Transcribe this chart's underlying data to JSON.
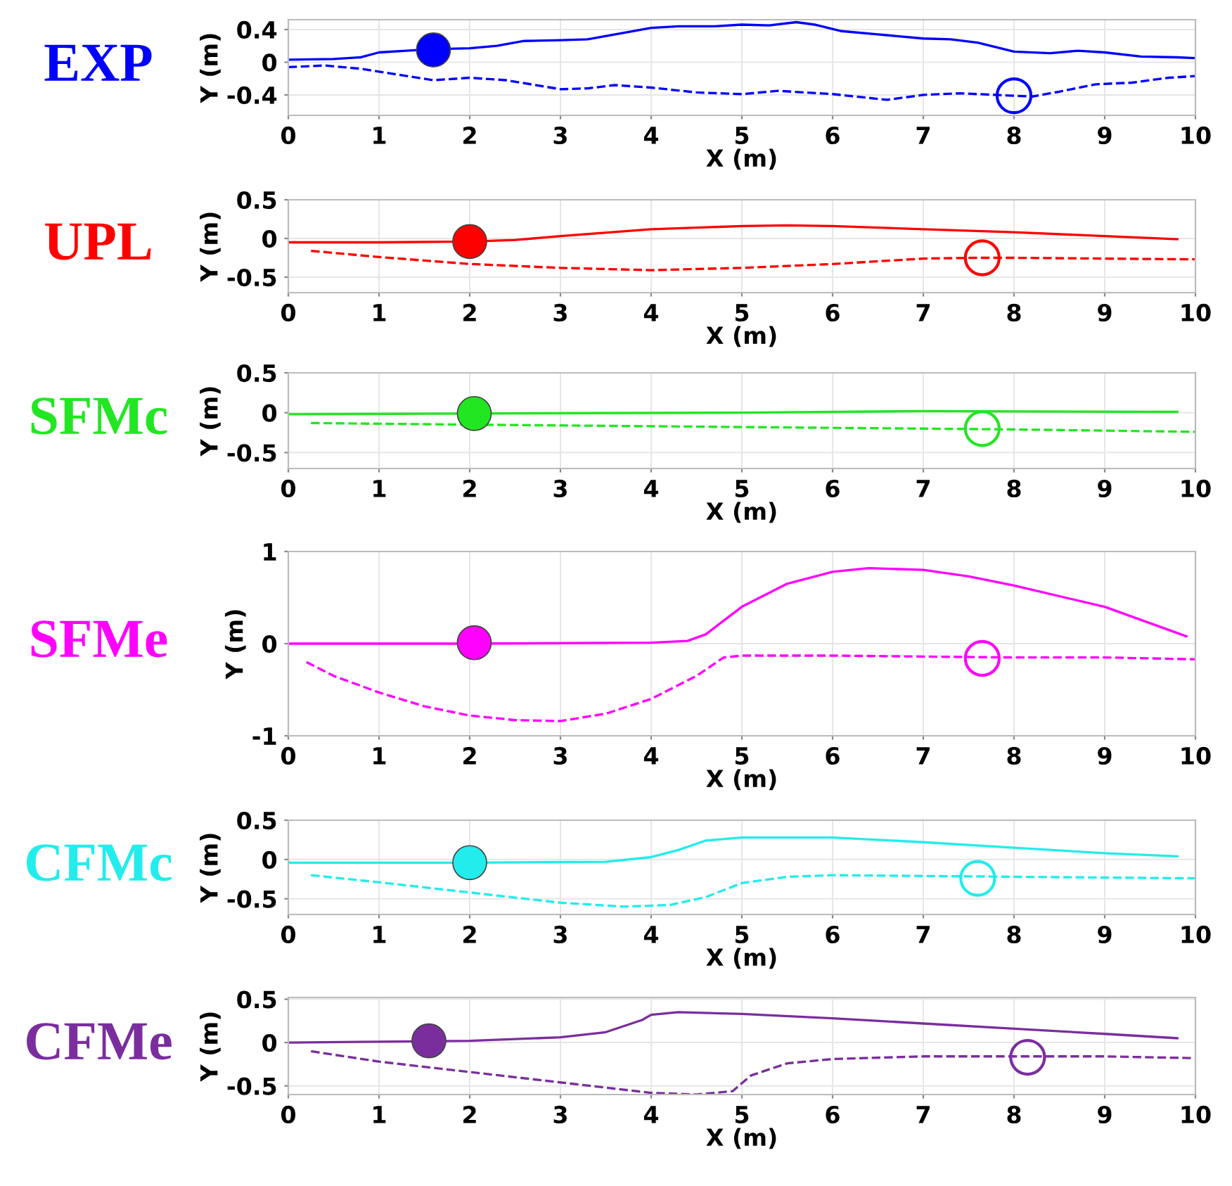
{
  "chart_data": [
    {
      "type": "line",
      "title": "EXP",
      "xlabel": "X (m)",
      "ylabel": "Y (m)",
      "xlim": [
        0,
        10
      ],
      "xticks": [
        0,
        1,
        2,
        3,
        4,
        5,
        6,
        7,
        8,
        9,
        10
      ],
      "ylim": [
        -0.65,
        0.52
      ],
      "yticks": [
        {
          "value": -0.4,
          "label": "-0.4"
        },
        0,
        0.4
      ],
      "grid": true,
      "series": [
        {
          "color": "#0000ff",
          "line_style": "solid",
          "x": [
            0,
            0.5,
            0.8,
            1,
            1.3,
            1.6,
            2,
            2.3,
            2.6,
            3,
            3.3,
            3.7,
            4,
            4.3,
            4.7,
            5,
            5.3,
            5.6,
            5.8,
            6.1,
            6.5,
            7,
            7.3,
            7.6,
            8,
            8.4,
            8.7,
            9,
            9.4,
            9.8,
            10
          ],
          "values": [
            0.03,
            0.04,
            0.06,
            0.12,
            0.14,
            0.16,
            0.17,
            0.2,
            0.26,
            0.27,
            0.28,
            0.36,
            0.42,
            0.44,
            0.44,
            0.46,
            0.45,
            0.49,
            0.46,
            0.38,
            0.34,
            0.29,
            0.28,
            0.24,
            0.13,
            0.11,
            0.14,
            0.12,
            0.07,
            0.06,
            0.05
          ]
        },
        {
          "color": "#0000ff",
          "line_style": "dashed",
          "x": [
            0,
            0.4,
            0.8,
            1.2,
            1.6,
            2,
            2.4,
            3,
            3.3,
            3.6,
            4,
            4.5,
            5,
            5.4,
            6,
            6.6,
            7,
            7.4,
            7.8,
            8.2,
            8.5,
            8.9,
            9.3,
            9.7,
            10
          ],
          "values": [
            -0.06,
            -0.04,
            -0.08,
            -0.15,
            -0.22,
            -0.19,
            -0.22,
            -0.33,
            -0.32,
            -0.28,
            -0.31,
            -0.37,
            -0.39,
            -0.35,
            -0.39,
            -0.46,
            -0.4,
            -0.38,
            -0.4,
            -0.42,
            -0.36,
            -0.27,
            -0.25,
            -0.19,
            -0.17
          ]
        },
        {
          "type": "scatter",
          "color": "#0000ff",
          "marker": "circle",
          "x": [
            1.6
          ],
          "values": [
            0.15
          ]
        },
        {
          "type": "scatter",
          "color": "#0000ff",
          "marker": "circle",
          "x": [
            8.0
          ],
          "values": [
            -0.41
          ]
        }
      ]
    },
    {
      "type": "line",
      "title": "UPL",
      "xlabel": "X (m)",
      "ylabel": "Y (m)",
      "xlim": [
        0,
        10
      ],
      "xticks": [
        0,
        1,
        2,
        3,
        4,
        5,
        6,
        7,
        8,
        9,
        10
      ],
      "ylim": [
        -0.7,
        0.5
      ],
      "yticks": [
        {
          "value": -0.5,
          "label": "-0.5"
        },
        0,
        0.5
      ],
      "grid": true,
      "series": [
        {
          "color": "#ff0000",
          "line_style": "solid",
          "x": [
            0,
            1,
            2,
            2.5,
            3,
            4,
            5,
            5.5,
            6,
            7,
            8,
            9,
            9.8
          ],
          "values": [
            -0.05,
            -0.05,
            -0.04,
            -0.02,
            0.03,
            0.12,
            0.16,
            0.17,
            0.16,
            0.12,
            0.08,
            0.03,
            -0.01
          ]
        },
        {
          "color": "#ff0000",
          "line_style": "dashed",
          "x": [
            0.25,
            1,
            2,
            3,
            4,
            5,
            6,
            7,
            7.6,
            8,
            9,
            10
          ],
          "values": [
            -0.16,
            -0.24,
            -0.33,
            -0.38,
            -0.41,
            -0.38,
            -0.33,
            -0.26,
            -0.25,
            -0.25,
            -0.26,
            -0.27
          ]
        },
        {
          "type": "scatter",
          "color": "#ff0000",
          "marker": "circle",
          "x": [
            2.0
          ],
          "values": [
            -0.04
          ]
        },
        {
          "type": "scatter",
          "color": "#ff0000",
          "marker": "circle",
          "x": [
            7.65
          ],
          "values": [
            -0.25
          ]
        }
      ]
    },
    {
      "type": "line",
      "title": "SFMc",
      "xlabel": "X (m)",
      "ylabel": "Y (m)",
      "xlim": [
        0,
        10
      ],
      "xticks": [
        0,
        1,
        2,
        3,
        4,
        5,
        6,
        7,
        8,
        9,
        10
      ],
      "ylim": [
        -0.7,
        0.5
      ],
      "yticks": [
        {
          "value": -0.5,
          "label": "-0.5"
        },
        0,
        0.5
      ],
      "grid": true,
      "series": [
        {
          "color": "#22e622",
          "line_style": "solid",
          "x": [
            0,
            2,
            5,
            7,
            9.8
          ],
          "values": [
            -0.02,
            -0.01,
            0,
            0.02,
            0.01
          ]
        },
        {
          "color": "#22e622",
          "line_style": "dashed",
          "x": [
            0.25,
            2,
            4,
            6,
            8,
            10
          ],
          "values": [
            -0.13,
            -0.15,
            -0.17,
            -0.19,
            -0.21,
            -0.24
          ]
        },
        {
          "type": "scatter",
          "color": "#22e622",
          "marker": "circle",
          "x": [
            2.05
          ],
          "values": [
            -0.01
          ]
        },
        {
          "type": "scatter",
          "color": "#22e622",
          "marker": "circle",
          "x": [
            7.65
          ],
          "values": [
            -0.2
          ]
        }
      ]
    },
    {
      "type": "line",
      "title": "SFMe",
      "xlabel": "X (m)",
      "ylabel": "Y (m)",
      "xlim": [
        0,
        10
      ],
      "xticks": [
        0,
        1,
        2,
        3,
        4,
        5,
        6,
        7,
        8,
        9,
        10
      ],
      "ylim": [
        -1,
        1
      ],
      "yticks": [
        {
          "value": -1,
          "label": "-1"
        },
        0,
        1
      ],
      "grid": true,
      "series": [
        {
          "color": "#ff00ff",
          "line_style": "solid",
          "x": [
            0,
            2,
            4,
            4.4,
            4.6,
            5,
            5.5,
            6,
            6.4,
            7,
            7.5,
            8,
            9,
            9.9
          ],
          "values": [
            0,
            0,
            0.01,
            0.03,
            0.1,
            0.4,
            0.65,
            0.78,
            0.82,
            0.8,
            0.73,
            0.63,
            0.4,
            0.08
          ]
        },
        {
          "color": "#ff00ff",
          "line_style": "dashed",
          "x": [
            0.2,
            0.5,
            1,
            1.5,
            2,
            2.5,
            3,
            3.5,
            4,
            4.5,
            4.8,
            5,
            6,
            7,
            8,
            9,
            10
          ],
          "values": [
            -0.2,
            -0.35,
            -0.53,
            -0.68,
            -0.78,
            -0.83,
            -0.84,
            -0.76,
            -0.6,
            -0.35,
            -0.15,
            -0.13,
            -0.13,
            -0.14,
            -0.15,
            -0.15,
            -0.17
          ]
        },
        {
          "type": "scatter",
          "color": "#ff00ff",
          "marker": "circle",
          "x": [
            2.05
          ],
          "values": [
            0.01
          ]
        },
        {
          "type": "scatter",
          "color": "#ff00ff",
          "marker": "circle",
          "x": [
            7.65
          ],
          "values": [
            -0.16
          ]
        }
      ]
    },
    {
      "type": "line",
      "title": "CFMc",
      "xlabel": "X (m)",
      "ylabel": "Y (m)",
      "xlim": [
        0,
        10
      ],
      "xticks": [
        0,
        1,
        2,
        3,
        4,
        5,
        6,
        7,
        8,
        9,
        10
      ],
      "ylim": [
        -0.7,
        0.5
      ],
      "yticks": [
        {
          "value": -0.5,
          "label": "-0.5"
        },
        0,
        0.5
      ],
      "grid": true,
      "series": [
        {
          "color": "#22ecec",
          "line_style": "solid",
          "x": [
            0,
            2,
            3.5,
            4,
            4.3,
            4.6,
            5,
            6,
            7,
            8,
            9,
            9.8
          ],
          "values": [
            -0.04,
            -0.04,
            -0.03,
            0.03,
            0.12,
            0.24,
            0.28,
            0.28,
            0.22,
            0.15,
            0.08,
            0.04
          ]
        },
        {
          "color": "#22ecec",
          "line_style": "dashed",
          "x": [
            0.25,
            1,
            2,
            3,
            3.7,
            4.2,
            4.6,
            5,
            5.5,
            6,
            7,
            8,
            9,
            10
          ],
          "values": [
            -0.2,
            -0.29,
            -0.42,
            -0.55,
            -0.6,
            -0.58,
            -0.48,
            -0.3,
            -0.22,
            -0.2,
            -0.21,
            -0.22,
            -0.23,
            -0.24
          ]
        },
        {
          "type": "scatter",
          "color": "#22ecec",
          "marker": "circle",
          "x": [
            2.0
          ],
          "values": [
            -0.04
          ]
        },
        {
          "type": "scatter",
          "color": "#22ecec",
          "marker": "circle",
          "x": [
            7.6
          ],
          "values": [
            -0.24
          ]
        }
      ]
    },
    {
      "type": "line",
      "title": "CFMe",
      "xlabel": "X (m)",
      "ylabel": "Y (m)",
      "xlim": [
        0,
        10
      ],
      "xticks": [
        0,
        1,
        2,
        3,
        4,
        5,
        6,
        7,
        8,
        9,
        10
      ],
      "ylim": [
        -0.6,
        0.52
      ],
      "yticks": [
        {
          "value": -0.5,
          "label": "-0.5"
        },
        0,
        0.5
      ],
      "grid": true,
      "series": [
        {
          "color": "#7a2e9e",
          "line_style": "solid",
          "x": [
            0,
            1,
            2,
            3,
            3.5,
            3.9,
            4,
            4.3,
            5,
            6,
            7,
            8,
            9,
            9.8
          ],
          "values": [
            0,
            0.01,
            0.02,
            0.06,
            0.12,
            0.26,
            0.32,
            0.35,
            0.33,
            0.28,
            0.22,
            0.16,
            0.1,
            0.05
          ]
        },
        {
          "color": "#7a2e9e",
          "line_style": "dashed",
          "x": [
            0.25,
            1,
            2,
            3,
            4,
            4.5,
            4.9,
            5.1,
            5.5,
            6,
            7,
            8,
            9,
            10
          ],
          "values": [
            -0.1,
            -0.22,
            -0.34,
            -0.46,
            -0.58,
            -0.6,
            -0.56,
            -0.38,
            -0.24,
            -0.19,
            -0.16,
            -0.16,
            -0.16,
            -0.18
          ]
        },
        {
          "type": "scatter",
          "color": "#7a2e9e",
          "marker": "circle",
          "x": [
            1.55
          ],
          "values": [
            0.02
          ]
        },
        {
          "type": "scatter",
          "color": "#7a2e9e",
          "marker": "circle",
          "x": [
            8.15
          ],
          "values": [
            -0.17
          ]
        }
      ]
    }
  ]
}
